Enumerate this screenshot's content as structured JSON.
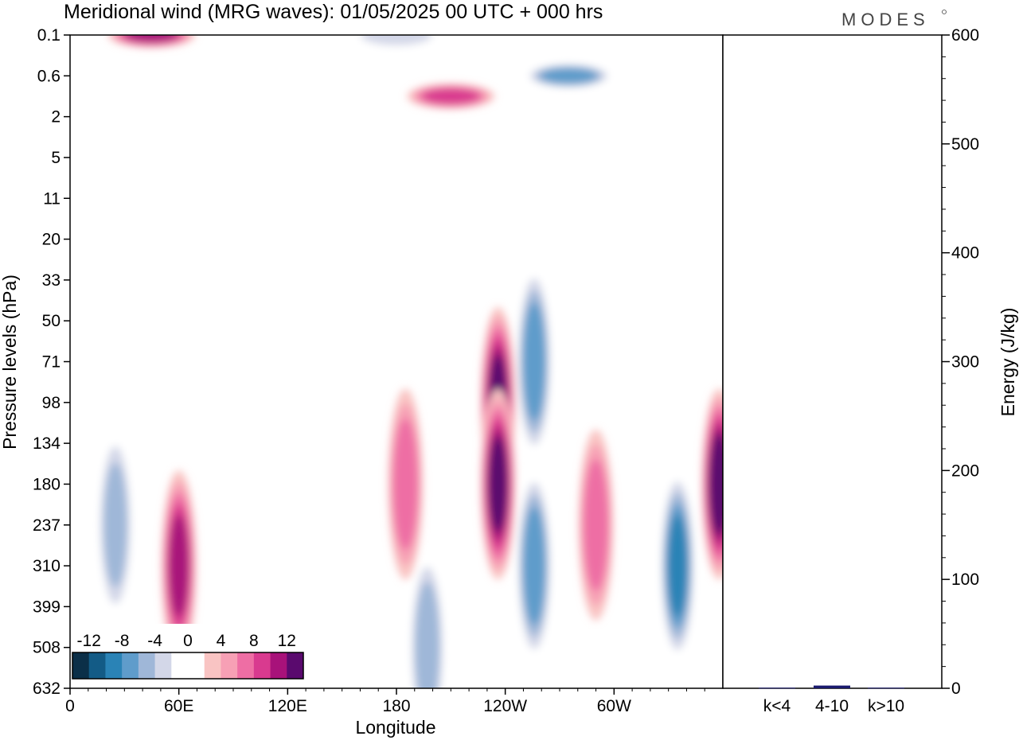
{
  "title": "Meridional wind (MRG waves):  01/05/2025  00 UTC  + 000 hrs",
  "brand": "MODES",
  "chart_data": [
    {
      "type": "heatmap",
      "title": "Meridional wind (MRG waves):  01/05/2025  00 UTC  + 000 hrs",
      "xlabel": "Longitude",
      "ylabel": "Pressure levels (hPa)",
      "x_ticks": [
        "0",
        "60E",
        "120E",
        "180",
        "120W",
        "60W"
      ],
      "y_ticks": [
        "0.1",
        "0.6",
        "2",
        "5",
        "11",
        "20",
        "33",
        "50",
        "71",
        "98",
        "134",
        "180",
        "237",
        "310",
        "399",
        "508",
        "632"
      ],
      "colorbar": {
        "labels": [
          "-12",
          "-8",
          "-4",
          "0",
          "4",
          "8",
          "12"
        ],
        "colors": [
          "#0b2f48",
          "#135b86",
          "#2a83b6",
          "#5f9ccb",
          "#9fb7d8",
          "#d3d7e8",
          "#ffffff",
          "#ffffff",
          "#f9c4c3",
          "#f7a0b5",
          "#ee6ea4",
          "#d93a8f",
          "#a8127a",
          "#5a0a6e"
        ]
      },
      "features": [
        {
          "lon": 45,
          "level": "0.1",
          "value": 11
        },
        {
          "lon": 180,
          "level": "0.1",
          "value": -5
        },
        {
          "lon": 210,
          "level": "1.3",
          "value": 9
        },
        {
          "lon": 275,
          "level": "0.6",
          "value": -9
        },
        {
          "lon": 25,
          "level": "237",
          "value": -6
        },
        {
          "lon": 60,
          "level": "310",
          "value": 10
        },
        {
          "lon": 185,
          "level": "180",
          "value": 7
        },
        {
          "lon": 197,
          "level": "508",
          "value": -7
        },
        {
          "lon": 236,
          "level": "98",
          "value": 12
        },
        {
          "lon": 236,
          "level": "180",
          "value": 12
        },
        {
          "lon": 256,
          "level": "71",
          "value": -9
        },
        {
          "lon": 256,
          "level": "310",
          "value": -9
        },
        {
          "lon": 290,
          "level": "237",
          "value": 7
        },
        {
          "lon": 335,
          "level": "310",
          "value": -10
        },
        {
          "lon": 358,
          "level": "180",
          "value": 13
        }
      ]
    },
    {
      "type": "bar",
      "ylabel": "Energy (J/kg)",
      "categories": [
        "k<4",
        "4-10",
        "k>10"
      ],
      "values": [
        0.5,
        2.5,
        0.5
      ],
      "ylim": [
        0,
        600
      ],
      "y_ticks": [
        "0",
        "100",
        "200",
        "300",
        "400",
        "500",
        "600"
      ],
      "bar_color": "#1a1a6e"
    }
  ]
}
